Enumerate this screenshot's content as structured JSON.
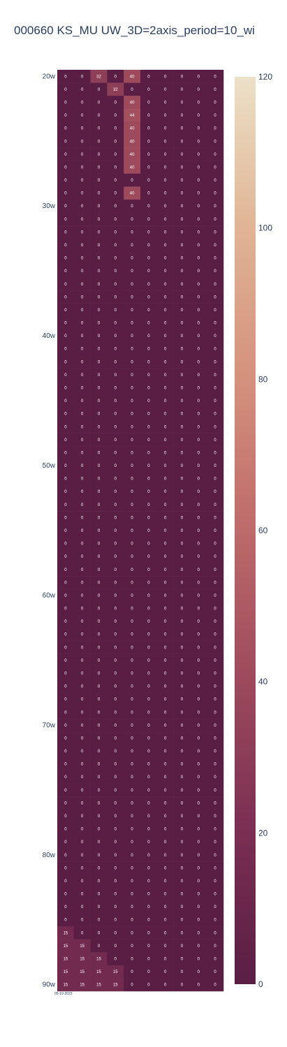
{
  "chart_data": {
    "type": "heatmap",
    "title": "000660 KS_MU UW_3D=2axis_period=10_wi",
    "columns": 10,
    "row_start_label_index": 20,
    "y_tick_labels": [
      "20w",
      "30w",
      "40w",
      "50w",
      "60w",
      "70w",
      "80w",
      "90w"
    ],
    "x_date_label": "05-19-2023",
    "colorscale": {
      "name": "pink-to-cream",
      "colors": [
        "#5a1e45",
        "#7a2e52",
        "#9c4a5c",
        "#bd6a6a",
        "#d4917c",
        "#e0b494",
        "#ece0c8"
      ],
      "range": [
        0,
        120
      ],
      "ticks": [
        0,
        20,
        40,
        60,
        80,
        100,
        120
      ]
    },
    "nonzero_cells": [
      {
        "row": 0,
        "col": 2,
        "value": 32
      },
      {
        "row": 0,
        "col": 4,
        "value": 40
      },
      {
        "row": 1,
        "col": 3,
        "value": 32
      },
      {
        "row": 2,
        "col": 4,
        "value": 40
      },
      {
        "row": 3,
        "col": 4,
        "value": 44
      },
      {
        "row": 4,
        "col": 4,
        "value": 40
      },
      {
        "row": 5,
        "col": 4,
        "value": 40
      },
      {
        "row": 6,
        "col": 4,
        "value": 40
      },
      {
        "row": 7,
        "col": 4,
        "value": 40
      },
      {
        "row": 9,
        "col": 4,
        "value": 40
      },
      {
        "row": 66,
        "col": 0,
        "value": 15
      },
      {
        "row": 67,
        "col": 0,
        "value": 15
      },
      {
        "row": 67,
        "col": 1,
        "value": 15
      },
      {
        "row": 68,
        "col": 0,
        "value": 15
      },
      {
        "row": 68,
        "col": 1,
        "value": 15
      },
      {
        "row": 68,
        "col": 2,
        "value": 15
      },
      {
        "row": 69,
        "col": 0,
        "value": 15
      },
      {
        "row": 69,
        "col": 1,
        "value": 15
      },
      {
        "row": 69,
        "col": 2,
        "value": 15
      },
      {
        "row": 69,
        "col": 3,
        "value": 15
      },
      {
        "row": 70,
        "col": 0,
        "value": 15
      },
      {
        "row": 70,
        "col": 1,
        "value": 15
      },
      {
        "row": 70,
        "col": 2,
        "value": 15
      },
      {
        "row": 70,
        "col": 3,
        "value": 15
      }
    ],
    "rows": 71,
    "zero_value": 0
  }
}
